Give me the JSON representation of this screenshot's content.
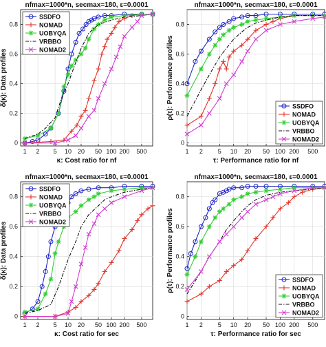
{
  "figure": {
    "colors": {
      "SSDFO": "#1f24c8",
      "NOMAD": "#e0342c",
      "UOBYQA": "#2fcf2f",
      "VRBBO": "#111111",
      "NOMAD2": "#d23cd2"
    }
  },
  "chart_data": [
    {
      "type": "line",
      "panel": "top-left",
      "title": "nfmax=1000*n, secmax=180, ε=0.0001",
      "xlabel": "κ: Cost ratio for nf",
      "ylabel": "δ(κ): Data profiles",
      "xscale": "log",
      "xlim": [
        0.8,
        900
      ],
      "ylim": [
        -0.02,
        0.9
      ],
      "xticks": [
        1,
        2,
        5,
        10,
        20,
        50,
        100,
        200,
        500
      ],
      "yticks": [
        0,
        0.2,
        0.4,
        0.6,
        0.8
      ],
      "legend_position": "top-left",
      "series": [
        {
          "name": "SSDFO",
          "style": "circle",
          "x": [
            1,
            1.5,
            2,
            3,
            4,
            6,
            8,
            10,
            12,
            15,
            18,
            22,
            26,
            30,
            35,
            40,
            50,
            70,
            100,
            200,
            500,
            900
          ],
          "y": [
            0.0,
            0.01,
            0.02,
            0.06,
            0.1,
            0.2,
            0.35,
            0.5,
            0.6,
            0.68,
            0.74,
            0.77,
            0.8,
            0.82,
            0.83,
            0.84,
            0.85,
            0.86,
            0.86,
            0.87,
            0.87,
            0.87
          ]
        },
        {
          "name": "NOMAD",
          "style": "plus",
          "x": [
            1,
            4,
            8,
            12,
            16,
            20,
            25,
            30,
            40,
            50,
            60,
            70,
            80,
            100,
            120,
            150,
            200,
            300,
            500,
            900
          ],
          "y": [
            0.0,
            0.01,
            0.02,
            0.08,
            0.12,
            0.18,
            0.22,
            0.3,
            0.42,
            0.5,
            0.6,
            0.65,
            0.7,
            0.74,
            0.78,
            0.82,
            0.84,
            0.86,
            0.87,
            0.87
          ]
        },
        {
          "name": "UOBYQA",
          "style": "star",
          "x": [
            1,
            2,
            4,
            6,
            8,
            10,
            12,
            15,
            20,
            25,
            30,
            40,
            50,
            70,
            100,
            200,
            500,
            900
          ],
          "y": [
            0.03,
            0.05,
            0.1,
            0.2,
            0.38,
            0.46,
            0.52,
            0.56,
            0.6,
            0.64,
            0.7,
            0.77,
            0.8,
            0.83,
            0.85,
            0.86,
            0.87,
            0.87
          ]
        },
        {
          "name": "VRBBO",
          "style": "dashdot",
          "x": [
            1,
            2,
            3,
            5,
            7,
            10,
            14,
            20,
            30,
            50,
            100,
            200,
            500,
            900
          ],
          "y": [
            0.03,
            0.06,
            0.1,
            0.17,
            0.3,
            0.4,
            0.52,
            0.64,
            0.74,
            0.8,
            0.83,
            0.85,
            0.86,
            0.87
          ]
        },
        {
          "name": "NOMAD2",
          "style": "cross",
          "x": [
            1,
            5,
            10,
            15,
            20,
            30,
            40,
            50,
            70,
            100,
            130,
            160,
            200,
            300,
            400,
            500,
            900
          ],
          "y": [
            0.0,
            0.0,
            0.02,
            0.05,
            0.1,
            0.18,
            0.22,
            0.3,
            0.4,
            0.5,
            0.58,
            0.65,
            0.72,
            0.78,
            0.82,
            0.86,
            0.87
          ]
        }
      ]
    },
    {
      "type": "line",
      "panel": "top-right",
      "title": "nfmax=1000*n, secmax=180, ε=0.0001",
      "xlabel": "τ: Performance ratio for nf",
      "ylabel": "ρ(τ): Performance profiles",
      "xscale": "log",
      "xlim": [
        1,
        900
      ],
      "ylim": [
        -0.02,
        0.9
      ],
      "xticks": [
        1,
        2,
        5,
        10,
        20,
        50,
        100,
        200,
        500
      ],
      "yticks": [
        0,
        0.2,
        0.4,
        0.6,
        0.8
      ],
      "legend_position": "bottom-right",
      "series": [
        {
          "name": "SSDFO",
          "style": "circle",
          "x": [
            1,
            1.5,
            2,
            3,
            4,
            5,
            6,
            8,
            10,
            15,
            20,
            30,
            50,
            100,
            200,
            500,
            900
          ],
          "y": [
            0.4,
            0.55,
            0.62,
            0.7,
            0.75,
            0.78,
            0.8,
            0.82,
            0.84,
            0.85,
            0.86,
            0.86,
            0.87,
            0.87,
            0.87,
            0.87,
            0.87
          ]
        },
        {
          "name": "NOMAD",
          "style": "plus",
          "x": [
            1,
            2,
            3,
            4,
            5,
            6,
            7,
            8,
            10,
            15,
            20,
            30,
            50,
            70,
            100,
            200,
            500,
            900
          ],
          "y": [
            0.12,
            0.18,
            0.3,
            0.4,
            0.5,
            0.55,
            0.5,
            0.58,
            0.62,
            0.66,
            0.7,
            0.76,
            0.8,
            0.82,
            0.84,
            0.86,
            0.86,
            0.86
          ]
        },
        {
          "name": "UOBYQA",
          "style": "star",
          "x": [
            1,
            2,
            3,
            4,
            5,
            6,
            8,
            10,
            15,
            20,
            30,
            50,
            100,
            200,
            500,
            900
          ],
          "y": [
            0.32,
            0.5,
            0.6,
            0.66,
            0.7,
            0.73,
            0.76,
            0.78,
            0.8,
            0.82,
            0.83,
            0.84,
            0.85,
            0.86,
            0.86,
            0.86
          ]
        },
        {
          "name": "VRBBO",
          "style": "dashdot",
          "x": [
            1,
            2,
            3,
            5,
            7,
            10,
            15,
            20,
            30,
            50,
            100,
            200,
            500,
            900
          ],
          "y": [
            0.18,
            0.36,
            0.46,
            0.58,
            0.64,
            0.7,
            0.75,
            0.78,
            0.81,
            0.83,
            0.85,
            0.86,
            0.86,
            0.86
          ]
        },
        {
          "name": "NOMAD2",
          "style": "cross",
          "x": [
            1,
            2,
            3,
            5,
            7,
            10,
            15,
            20,
            30,
            50,
            100,
            200,
            500,
            900
          ],
          "y": [
            0.06,
            0.12,
            0.2,
            0.3,
            0.4,
            0.46,
            0.55,
            0.62,
            0.7,
            0.76,
            0.8,
            0.82,
            0.84,
            0.85
          ]
        }
      ]
    },
    {
      "type": "line",
      "panel": "bottom-left",
      "title": "nfmax=1000*n, secmax=180, ε=0.0001",
      "xlabel": "κ: Cost ratio for sec",
      "ylabel": "δ(κ): Data profiles",
      "xscale": "log",
      "xlim": [
        0.8,
        900
      ],
      "ylim": [
        -0.02,
        0.9
      ],
      "xticks": [
        1,
        2,
        5,
        10,
        20,
        50,
        100,
        200,
        500
      ],
      "yticks": [
        0,
        0.2,
        0.4,
        0.6,
        0.8
      ],
      "legend_position": "top-left",
      "series": [
        {
          "name": "SSDFO",
          "style": "circle",
          "x": [
            1,
            1.5,
            2,
            2.5,
            3,
            3.5,
            4,
            5,
            6,
            8,
            10,
            12,
            15,
            20,
            30,
            50,
            100,
            200,
            500,
            900
          ],
          "y": [
            0.02,
            0.05,
            0.1,
            0.2,
            0.3,
            0.4,
            0.5,
            0.6,
            0.66,
            0.72,
            0.76,
            0.8,
            0.82,
            0.84,
            0.85,
            0.86,
            0.86,
            0.87,
            0.87,
            0.87
          ]
        },
        {
          "name": "NOMAD",
          "style": "plus",
          "x": [
            1,
            5,
            10,
            15,
            20,
            30,
            40,
            50,
            70,
            100,
            150,
            200,
            300,
            400,
            500,
            700,
            900
          ],
          "y": [
            0.0,
            0.0,
            0.03,
            0.06,
            0.1,
            0.14,
            0.18,
            0.22,
            0.3,
            0.36,
            0.44,
            0.52,
            0.58,
            0.64,
            0.68,
            0.72,
            0.74
          ]
        },
        {
          "name": "UOBYQA",
          "style": "star",
          "x": [
            1,
            2,
            3,
            4,
            5,
            6,
            8,
            10,
            15,
            20,
            30,
            40,
            50,
            100,
            200,
            500,
            900
          ],
          "y": [
            0.03,
            0.05,
            0.15,
            0.25,
            0.42,
            0.5,
            0.6,
            0.66,
            0.7,
            0.74,
            0.78,
            0.8,
            0.82,
            0.84,
            0.85,
            0.86,
            0.86
          ]
        },
        {
          "name": "VRBBO",
          "style": "dashdot",
          "x": [
            1,
            2,
            4,
            6,
            8,
            10,
            15,
            20,
            30,
            50,
            70,
            100,
            200,
            500,
            900
          ],
          "y": [
            0.02,
            0.04,
            0.08,
            0.2,
            0.3,
            0.38,
            0.5,
            0.6,
            0.68,
            0.74,
            0.78,
            0.8,
            0.83,
            0.85,
            0.86
          ]
        },
        {
          "name": "NOMAD2",
          "style": "cross",
          "x": [
            1,
            5,
            10,
            12,
            15,
            20,
            25,
            30,
            40,
            50,
            70,
            100,
            200,
            500,
            900
          ],
          "y": [
            0.0,
            0.0,
            0.02,
            0.1,
            0.2,
            0.35,
            0.46,
            0.55,
            0.62,
            0.68,
            0.72,
            0.76,
            0.8,
            0.84,
            0.86
          ]
        }
      ]
    },
    {
      "type": "line",
      "panel": "bottom-right",
      "title": "nfmax=1000*n, secmax=180, ε=0.0001",
      "xlabel": "τ: Performance ratio for sec",
      "ylabel": "ρ(τ): Performance profiles",
      "xscale": "log",
      "xlim": [
        1,
        900
      ],
      "ylim": [
        -0.02,
        0.9
      ],
      "xticks": [
        1,
        2,
        5,
        10,
        20,
        50,
        100,
        200,
        500
      ],
      "yticks": [
        0,
        0.2,
        0.4,
        0.6,
        0.8
      ],
      "legend_position": "bottom-right",
      "series": [
        {
          "name": "SSDFO",
          "style": "circle",
          "x": [
            1,
            1.2,
            1.5,
            2,
            2.5,
            3,
            3.5,
            4,
            5,
            6,
            7,
            8,
            10,
            15,
            20,
            30,
            50,
            100,
            200,
            500,
            900
          ],
          "y": [
            0.32,
            0.42,
            0.5,
            0.6,
            0.66,
            0.72,
            0.76,
            0.78,
            0.82,
            0.83,
            0.84,
            0.85,
            0.86,
            0.86,
            0.87,
            0.87,
            0.87,
            0.87,
            0.87,
            0.87,
            0.87
          ]
        },
        {
          "name": "NOMAD",
          "style": "plus",
          "x": [
            1,
            2,
            3,
            5,
            7,
            10,
            15,
            20,
            30,
            50,
            70,
            100,
            150,
            200,
            300,
            500,
            900
          ],
          "y": [
            0.1,
            0.15,
            0.2,
            0.24,
            0.3,
            0.34,
            0.38,
            0.44,
            0.52,
            0.6,
            0.66,
            0.72,
            0.76,
            0.8,
            0.83,
            0.85,
            0.86
          ]
        },
        {
          "name": "UOBYQA",
          "style": "star",
          "x": [
            1,
            1.5,
            2,
            3,
            4,
            5,
            6,
            8,
            10,
            15,
            20,
            30,
            50,
            100,
            200,
            500,
            900
          ],
          "y": [
            0.28,
            0.4,
            0.5,
            0.6,
            0.66,
            0.7,
            0.72,
            0.75,
            0.78,
            0.8,
            0.82,
            0.83,
            0.84,
            0.85,
            0.86,
            0.86,
            0.86
          ]
        },
        {
          "name": "VRBBO",
          "style": "dashdot",
          "x": [
            1,
            2,
            3,
            5,
            7,
            10,
            15,
            20,
            30,
            50,
            100,
            200,
            500,
            900
          ],
          "y": [
            0.15,
            0.3,
            0.4,
            0.5,
            0.58,
            0.64,
            0.7,
            0.74,
            0.78,
            0.81,
            0.83,
            0.84,
            0.85,
            0.86
          ]
        },
        {
          "name": "NOMAD2",
          "style": "cross",
          "x": [
            1,
            2,
            3,
            5,
            7,
            10,
            15,
            20,
            30,
            50,
            70,
            100,
            200,
            500,
            900
          ],
          "y": [
            0.18,
            0.3,
            0.4,
            0.5,
            0.55,
            0.6,
            0.66,
            0.7,
            0.75,
            0.78,
            0.8,
            0.82,
            0.84,
            0.86,
            0.86
          ]
        }
      ]
    }
  ]
}
